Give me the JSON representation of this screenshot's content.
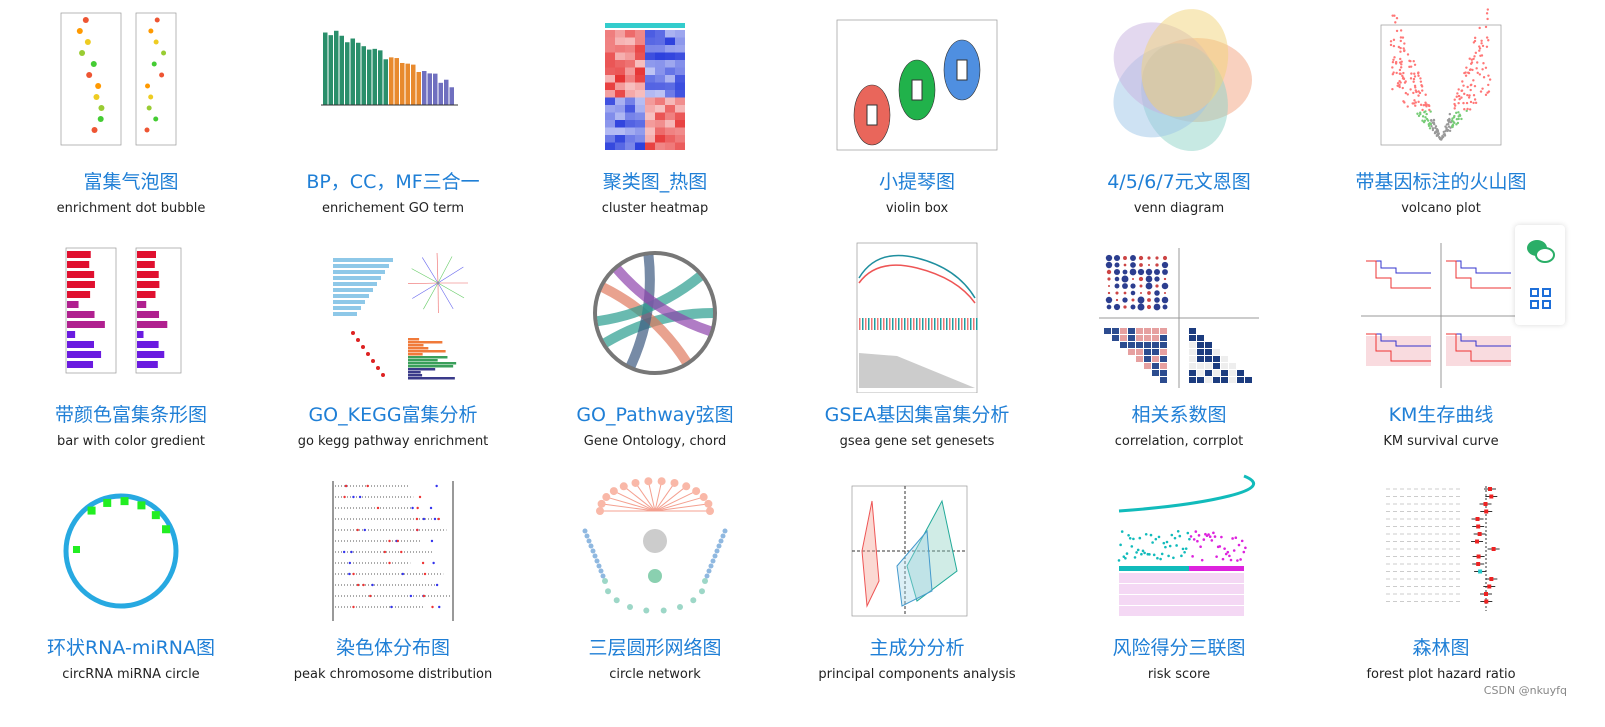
{
  "gallery": {
    "items": [
      {
        "title": "富集气泡图",
        "subtitle": "enrichment dot bubble"
      },
      {
        "title": "BP，CC，MF三合一",
        "subtitle": "enrichement GO term"
      },
      {
        "title": "聚类图_热图",
        "subtitle": "cluster heatmap"
      },
      {
        "title": "小提琴图",
        "subtitle": "violin box"
      },
      {
        "title": "4/5/6/7元文恩图",
        "subtitle": "venn diagram"
      },
      {
        "title": "带基因标注的火山图",
        "subtitle": "volcano plot"
      },
      {
        "title": "带颜色富集条形图",
        "subtitle": "bar with color gredient"
      },
      {
        "title": "GO_KEGG富集分析",
        "subtitle": "go kegg pathway enrichment"
      },
      {
        "title": "GO_Pathway弦图",
        "subtitle": "Gene Ontology, chord"
      },
      {
        "title": "GSEA基因集富集分析",
        "subtitle": "gsea gene set genesets"
      },
      {
        "title": "相关系数图",
        "subtitle": "correlation, corrplot"
      },
      {
        "title": "KM生存曲线",
        "subtitle": "KM survival curve"
      },
      {
        "title": "环状RNA-miRNA图",
        "subtitle": "circRNA miRNA circle"
      },
      {
        "title": "染色体分布图",
        "subtitle": "peak chromosome distribution"
      },
      {
        "title": "三层圆形网络图",
        "subtitle": "circle network"
      },
      {
        "title": "主成分分析",
        "subtitle": "principal components analysis"
      },
      {
        "title": "风险得分三联图",
        "subtitle": "risk score"
      },
      {
        "title": "森林图",
        "subtitle": "forest plot hazard ratio"
      }
    ]
  },
  "watermark": "CSDN @nkuyfq"
}
